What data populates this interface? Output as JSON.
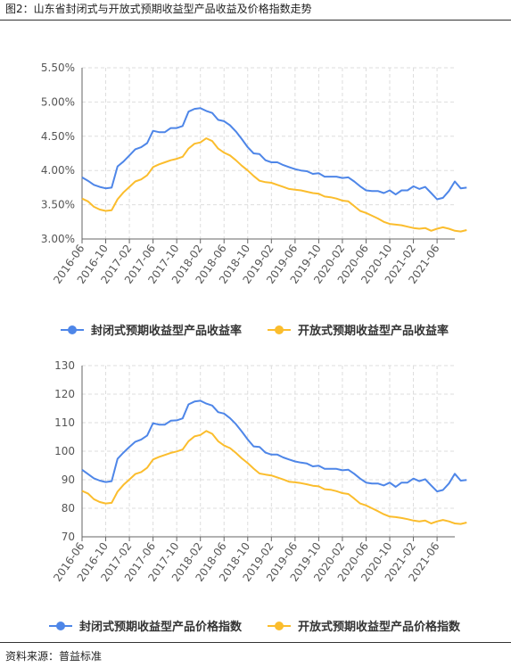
{
  "figure": {
    "title": "图2：山东省封闭式与开放式预期收益型产品收益及价格指数走势",
    "source": "资料来源：普益标准"
  },
  "colors": {
    "blue": "#4e86e8",
    "yellow": "#fbbd2d",
    "grid": "#dddddd",
    "axis": "#666666"
  },
  "chart_data": [
    {
      "type": "line",
      "x_tick_labels": [
        "2016-06",
        "2016-10",
        "2017-02",
        "2017-06",
        "2017-10",
        "2018-02",
        "2018-06",
        "2018-10",
        "2019-02",
        "2019-06",
        "2019-10",
        "2020-02",
        "2020-06",
        "2020-10",
        "2021-02",
        "2021-06"
      ],
      "y_tick_labels": [
        "3.00%",
        "3.50%",
        "4.00%",
        "4.50%",
        "5.00%",
        "5.50%"
      ],
      "ylim": [
        3.0,
        5.5
      ],
      "x_range": [
        "2016-06",
        "2021-09"
      ],
      "grid": true,
      "legend_position": "bottom",
      "series": [
        {
          "name": "封闭式预期收益型产品收益率",
          "color": "#4e86e8",
          "values": [
            3.9,
            3.85,
            3.79,
            3.76,
            3.74,
            3.75,
            4.06,
            4.13,
            4.22,
            4.31,
            4.34,
            4.4,
            4.58,
            4.56,
            4.56,
            4.62,
            4.62,
            4.65,
            4.86,
            4.9,
            4.91,
            4.87,
            4.84,
            4.74,
            4.72,
            4.66,
            4.57,
            4.46,
            4.34,
            4.25,
            4.24,
            4.15,
            4.12,
            4.12,
            4.08,
            4.05,
            4.02,
            4.0,
            3.99,
            3.95,
            3.96,
            3.91,
            3.91,
            3.91,
            3.89,
            3.9,
            3.84,
            3.77,
            3.71,
            3.7,
            3.7,
            3.67,
            3.71,
            3.65,
            3.71,
            3.71,
            3.77,
            3.73,
            3.76,
            3.67,
            3.58,
            3.6,
            3.7,
            3.84,
            3.74,
            3.75
          ]
        },
        {
          "name": "开放式预期收益型产品收益率",
          "color": "#fbbd2d",
          "values": [
            3.59,
            3.55,
            3.47,
            3.43,
            3.41,
            3.42,
            3.58,
            3.68,
            3.76,
            3.84,
            3.87,
            3.93,
            4.05,
            4.09,
            4.12,
            4.15,
            4.17,
            4.2,
            4.32,
            4.39,
            4.41,
            4.47,
            4.43,
            4.32,
            4.26,
            4.22,
            4.15,
            4.07,
            4.0,
            3.92,
            3.85,
            3.83,
            3.82,
            3.79,
            3.76,
            3.73,
            3.72,
            3.71,
            3.69,
            3.67,
            3.66,
            3.62,
            3.61,
            3.59,
            3.56,
            3.55,
            3.48,
            3.41,
            3.38,
            3.34,
            3.3,
            3.25,
            3.22,
            3.21,
            3.2,
            3.18,
            3.16,
            3.15,
            3.16,
            3.12,
            3.15,
            3.17,
            3.15,
            3.12,
            3.11,
            3.13
          ]
        }
      ]
    },
    {
      "type": "line",
      "x_tick_labels": [
        "2016-06",
        "2016-10",
        "2017-02",
        "2017-06",
        "2017-10",
        "2018-02",
        "2018-06",
        "2018-10",
        "2019-02",
        "2019-06",
        "2019-10",
        "2020-02",
        "2020-06",
        "2020-10",
        "2021-02",
        "2021-06"
      ],
      "y_tick_labels": [
        "70",
        "80",
        "90",
        "100",
        "110",
        "120",
        "130"
      ],
      "ylim": [
        70,
        130
      ],
      "x_range": [
        "2016-06",
        "2021-09"
      ],
      "grid": true,
      "legend_position": "bottom",
      "series": [
        {
          "name": "封闭式预期收益型产品价格指数",
          "color": "#4e86e8",
          "values": [
            93.5,
            92.0,
            90.5,
            89.7,
            89.2,
            89.5,
            97.3,
            99.5,
            101.5,
            103.3,
            104.1,
            105.5,
            109.8,
            109.3,
            109.3,
            110.7,
            110.8,
            111.5,
            116.4,
            117.4,
            117.7,
            116.7,
            116.0,
            113.7,
            113.2,
            111.6,
            109.5,
            106.9,
            104.1,
            101.7,
            101.5,
            99.5,
            98.8,
            98.8,
            97.8,
            97.1,
            96.4,
            96.0,
            95.7,
            94.7,
            94.9,
            93.8,
            93.8,
            93.8,
            93.3,
            93.5,
            92.1,
            90.4,
            89.0,
            88.7,
            88.7,
            88.0,
            89.0,
            87.5,
            89.0,
            89.0,
            90.4,
            89.5,
            90.2,
            88.0,
            85.9,
            86.4,
            88.7,
            92.1,
            89.7,
            89.9
          ]
        },
        {
          "name": "开放式预期收益型产品价格指数",
          "color": "#fbbd2d",
          "values": [
            86.1,
            85.2,
            83.2,
            82.2,
            81.7,
            81.9,
            85.8,
            88.2,
            90.1,
            92.0,
            92.7,
            94.2,
            97.1,
            98.0,
            98.7,
            99.4,
            99.9,
            100.6,
            103.5,
            105.2,
            105.7,
            107.1,
            106.1,
            103.5,
            102.0,
            101.1,
            99.4,
            97.5,
            95.8,
            93.9,
            92.2,
            91.8,
            91.5,
            90.8,
            90.1,
            89.3,
            89.1,
            88.8,
            88.4,
            87.9,
            87.7,
            86.7,
            86.5,
            86.0,
            85.3,
            85.0,
            83.4,
            81.7,
            81.0,
            80.0,
            79.0,
            77.9,
            77.1,
            76.9,
            76.6,
            76.2,
            75.7,
            75.4,
            75.7,
            74.7,
            75.4,
            75.9,
            75.4,
            74.7,
            74.5,
            75.0
          ]
        }
      ]
    }
  ]
}
